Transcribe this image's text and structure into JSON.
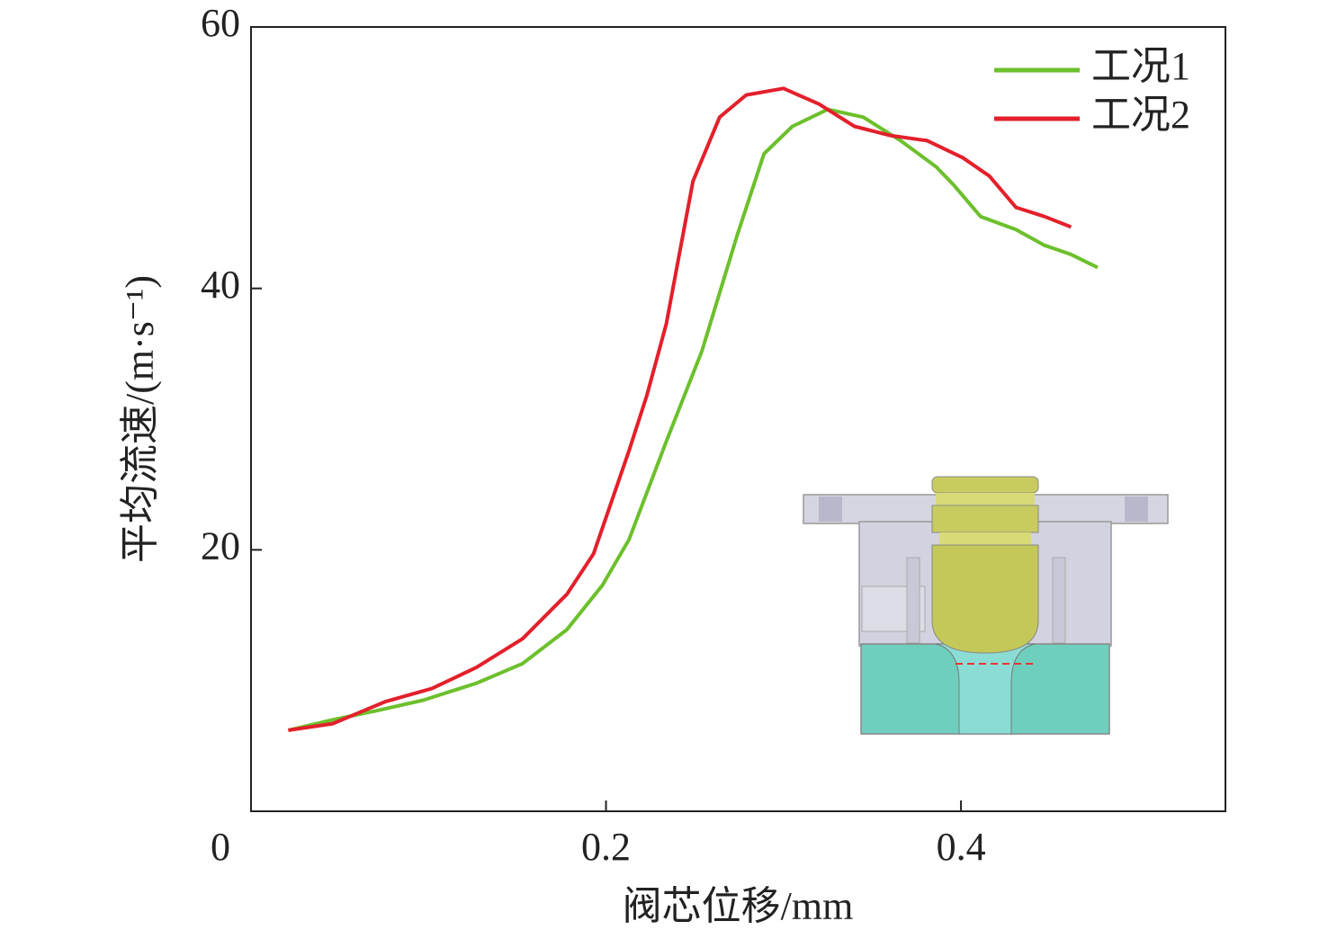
{
  "chart_data": {
    "type": "line",
    "x_label": "阀芯位移/mm",
    "y_label": "平均流速/(m·s⁻¹)",
    "xlim": [
      0,
      0.549
    ],
    "xticks": [
      0,
      0.2,
      0.4
    ],
    "ylim": [
      0,
      60
    ],
    "yticks": [
      20,
      40,
      60
    ],
    "legend": "upper right",
    "series": [
      {
        "name": "工况1",
        "color": "#6cc02c",
        "x": [
          0.021,
          0.046,
          0.071,
          0.097,
          0.127,
          0.153,
          0.178,
          0.198,
          0.213,
          0.234,
          0.254,
          0.274,
          0.289,
          0.305,
          0.325,
          0.345,
          0.366,
          0.386,
          0.396,
          0.411,
          0.431,
          0.447,
          0.462,
          0.477
        ],
        "values": [
          6.2,
          7.0,
          7.7,
          8.5,
          9.8,
          11.3,
          13.9,
          17.3,
          20.8,
          28.3,
          35.2,
          44.1,
          50.3,
          52.4,
          53.7,
          53.1,
          51.3,
          49.3,
          47.9,
          45.5,
          44.5,
          43.3,
          42.6,
          41.6
        ]
      },
      {
        "name": "工况2",
        "color": "#e3202b",
        "x": [
          0.021,
          0.046,
          0.076,
          0.102,
          0.127,
          0.153,
          0.178,
          0.193,
          0.213,
          0.223,
          0.234,
          0.249,
          0.264,
          0.279,
          0.3,
          0.32,
          0.34,
          0.36,
          0.381,
          0.401,
          0.416,
          0.431,
          0.447,
          0.462
        ],
        "values": [
          6.2,
          6.7,
          8.4,
          9.4,
          11.0,
          13.2,
          16.6,
          19.7,
          27.6,
          31.8,
          37.3,
          48.2,
          53.1,
          54.8,
          55.3,
          54.1,
          52.4,
          51.7,
          51.3,
          50.0,
          48.6,
          46.2,
          45.5,
          44.7
        ]
      }
    ]
  }
}
